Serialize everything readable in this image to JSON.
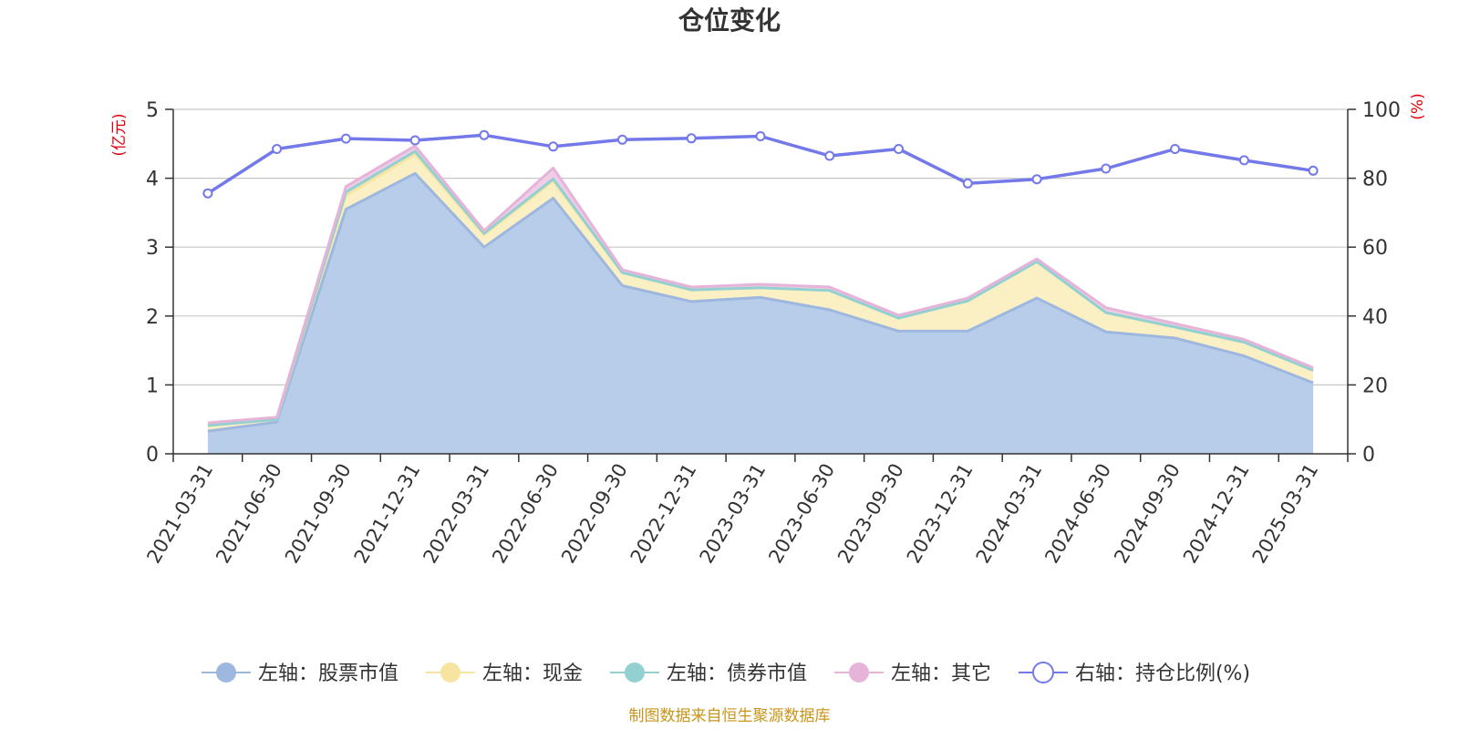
{
  "chart_data": {
    "type": "area",
    "title": "仓位变化",
    "categories": [
      "2021-03-31",
      "2021-06-30",
      "2021-09-30",
      "2021-12-31",
      "2022-03-31",
      "2022-06-30",
      "2022-09-30",
      "2022-12-31",
      "2023-03-31",
      "2023-06-30",
      "2023-09-30",
      "2023-12-31",
      "2024-03-31",
      "2024-06-30",
      "2024-09-30",
      "2024-12-31",
      "2025-03-31"
    ],
    "left_axis": {
      "unit": "(亿元)",
      "ylim": [
        0,
        5
      ],
      "ticks": [
        0,
        1,
        2,
        3,
        4,
        5
      ]
    },
    "right_axis": {
      "unit": "(%)",
      "ylim": [
        0,
        100
      ],
      "ticks": [
        0,
        20,
        40,
        60,
        80,
        100
      ]
    },
    "grid": true,
    "stacked": true,
    "series": [
      {
        "name": "左轴：股票市值",
        "axis": "left",
        "kind": "area",
        "color": "#9db7df",
        "fill": "#b8cdea",
        "values": [
          0.33,
          0.46,
          3.55,
          4.07,
          3.0,
          3.71,
          2.44,
          2.21,
          2.27,
          2.09,
          1.78,
          1.78,
          2.26,
          1.77,
          1.68,
          1.42,
          1.03
        ]
      },
      {
        "name": "左轴：现金",
        "axis": "left",
        "kind": "area",
        "color": "#f7e4a1",
        "fill": "#fbefc4",
        "values": [
          0.08,
          0.04,
          0.2,
          0.28,
          0.18,
          0.25,
          0.19,
          0.17,
          0.14,
          0.28,
          0.19,
          0.44,
          0.53,
          0.28,
          0.16,
          0.2,
          0.18
        ]
      },
      {
        "name": "左轴：债券市值",
        "axis": "left",
        "kind": "area",
        "color": "#93d0d2",
        "fill": "#bfe4e4",
        "values": [
          0.0,
          0.0,
          0.05,
          0.04,
          0.02,
          0.03,
          0.0,
          0.0,
          0.0,
          0.0,
          0.0,
          0.0,
          0.0,
          0.0,
          0.0,
          0.0,
          0.0
        ]
      },
      {
        "name": "左轴：其它",
        "axis": "left",
        "kind": "area",
        "color": "#e6b4d9",
        "fill": "#efcde6",
        "values": [
          0.04,
          0.03,
          0.08,
          0.08,
          0.04,
          0.16,
          0.04,
          0.04,
          0.05,
          0.05,
          0.04,
          0.04,
          0.04,
          0.07,
          0.05,
          0.04,
          0.04
        ]
      },
      {
        "name": "右轴：持仓比例(%)",
        "axis": "right",
        "kind": "line",
        "color": "#7379e8",
        "values": [
          75.6,
          88.5,
          91.5,
          91.0,
          92.5,
          89.2,
          91.2,
          91.6,
          92.2,
          86.5,
          88.5,
          78.5,
          79.7,
          82.8,
          88.5,
          85.2,
          82.2
        ]
      }
    ],
    "legend_position": "bottom",
    "source_note": "制图数据来自恒生聚源数据库"
  }
}
